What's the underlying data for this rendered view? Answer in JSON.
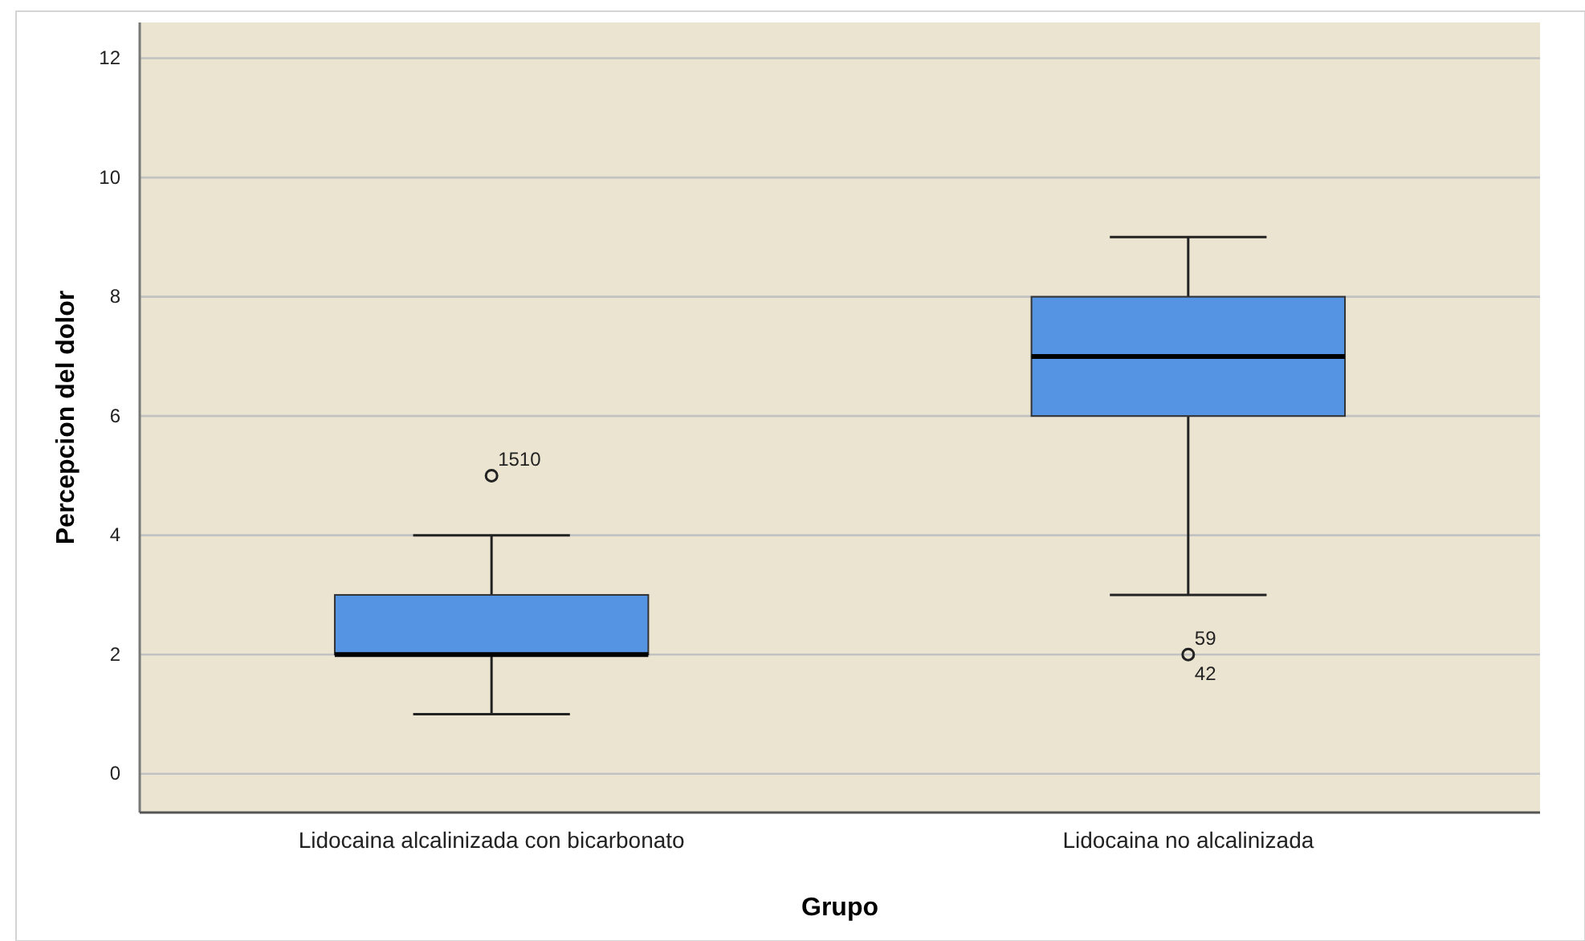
{
  "chart_data": {
    "type": "box",
    "xlabel": "Grupo",
    "ylabel": "Percepcion del dolor",
    "categories": [
      "Lidocaina alcalinizada con bicarbonato",
      "Lidocaina no alcalinizada"
    ],
    "boxes": [
      {
        "low": 1,
        "q1": 2,
        "median": 2,
        "q3": 3,
        "high": 4,
        "outliers": [
          5
        ]
      },
      {
        "low": 3,
        "q1": 6,
        "median": 7,
        "q3": 8,
        "high": 9,
        "outliers": [
          2
        ]
      }
    ],
    "color": "#5593e3",
    "ylim": [
      -0.65,
      12.6
    ],
    "yticks": [
      0,
      2,
      4,
      6,
      8,
      10,
      12
    ],
    "grid": "y",
    "annotations": [
      "1510",
      "59",
      "42"
    ]
  }
}
